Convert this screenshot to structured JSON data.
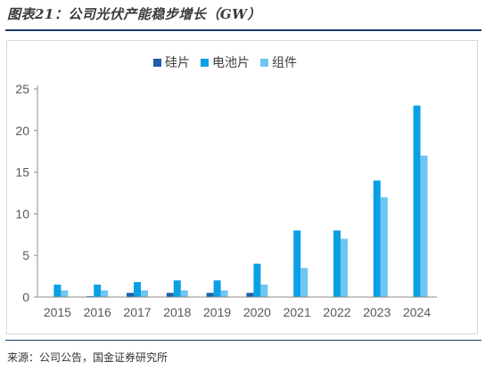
{
  "header": {
    "title": "图表21：公司光伏产能稳步增长（GW）"
  },
  "footer": {
    "source": "来源：公司公告，国金证券研究所"
  },
  "colors": {
    "series_1": "#1f5fa8",
    "series_2": "#0aa0e6",
    "series_3": "#6fc5f2",
    "rule": "#1f3864"
  },
  "chart_data": {
    "type": "bar",
    "categories": [
      "2015",
      "2016",
      "2017",
      "2018",
      "2019",
      "2020",
      "2021",
      "2022",
      "2023",
      "2024"
    ],
    "series": [
      {
        "name": "硅片",
        "values": [
          0,
          0.1,
          0.5,
          0.5,
          0.5,
          0.5,
          0,
          0,
          0,
          0
        ]
      },
      {
        "name": "电池片",
        "values": [
          1.5,
          1.5,
          1.8,
          2,
          2,
          4,
          8,
          8,
          14,
          23
        ]
      },
      {
        "name": "组件",
        "values": [
          0.8,
          0.8,
          0.8,
          0.8,
          0.8,
          1.5,
          3.5,
          7,
          12,
          17
        ]
      }
    ],
    "yticks": [
      0,
      5,
      10,
      15,
      20,
      25
    ],
    "ylim": [
      0,
      25
    ],
    "grid": false,
    "legend_position": "top-center"
  }
}
